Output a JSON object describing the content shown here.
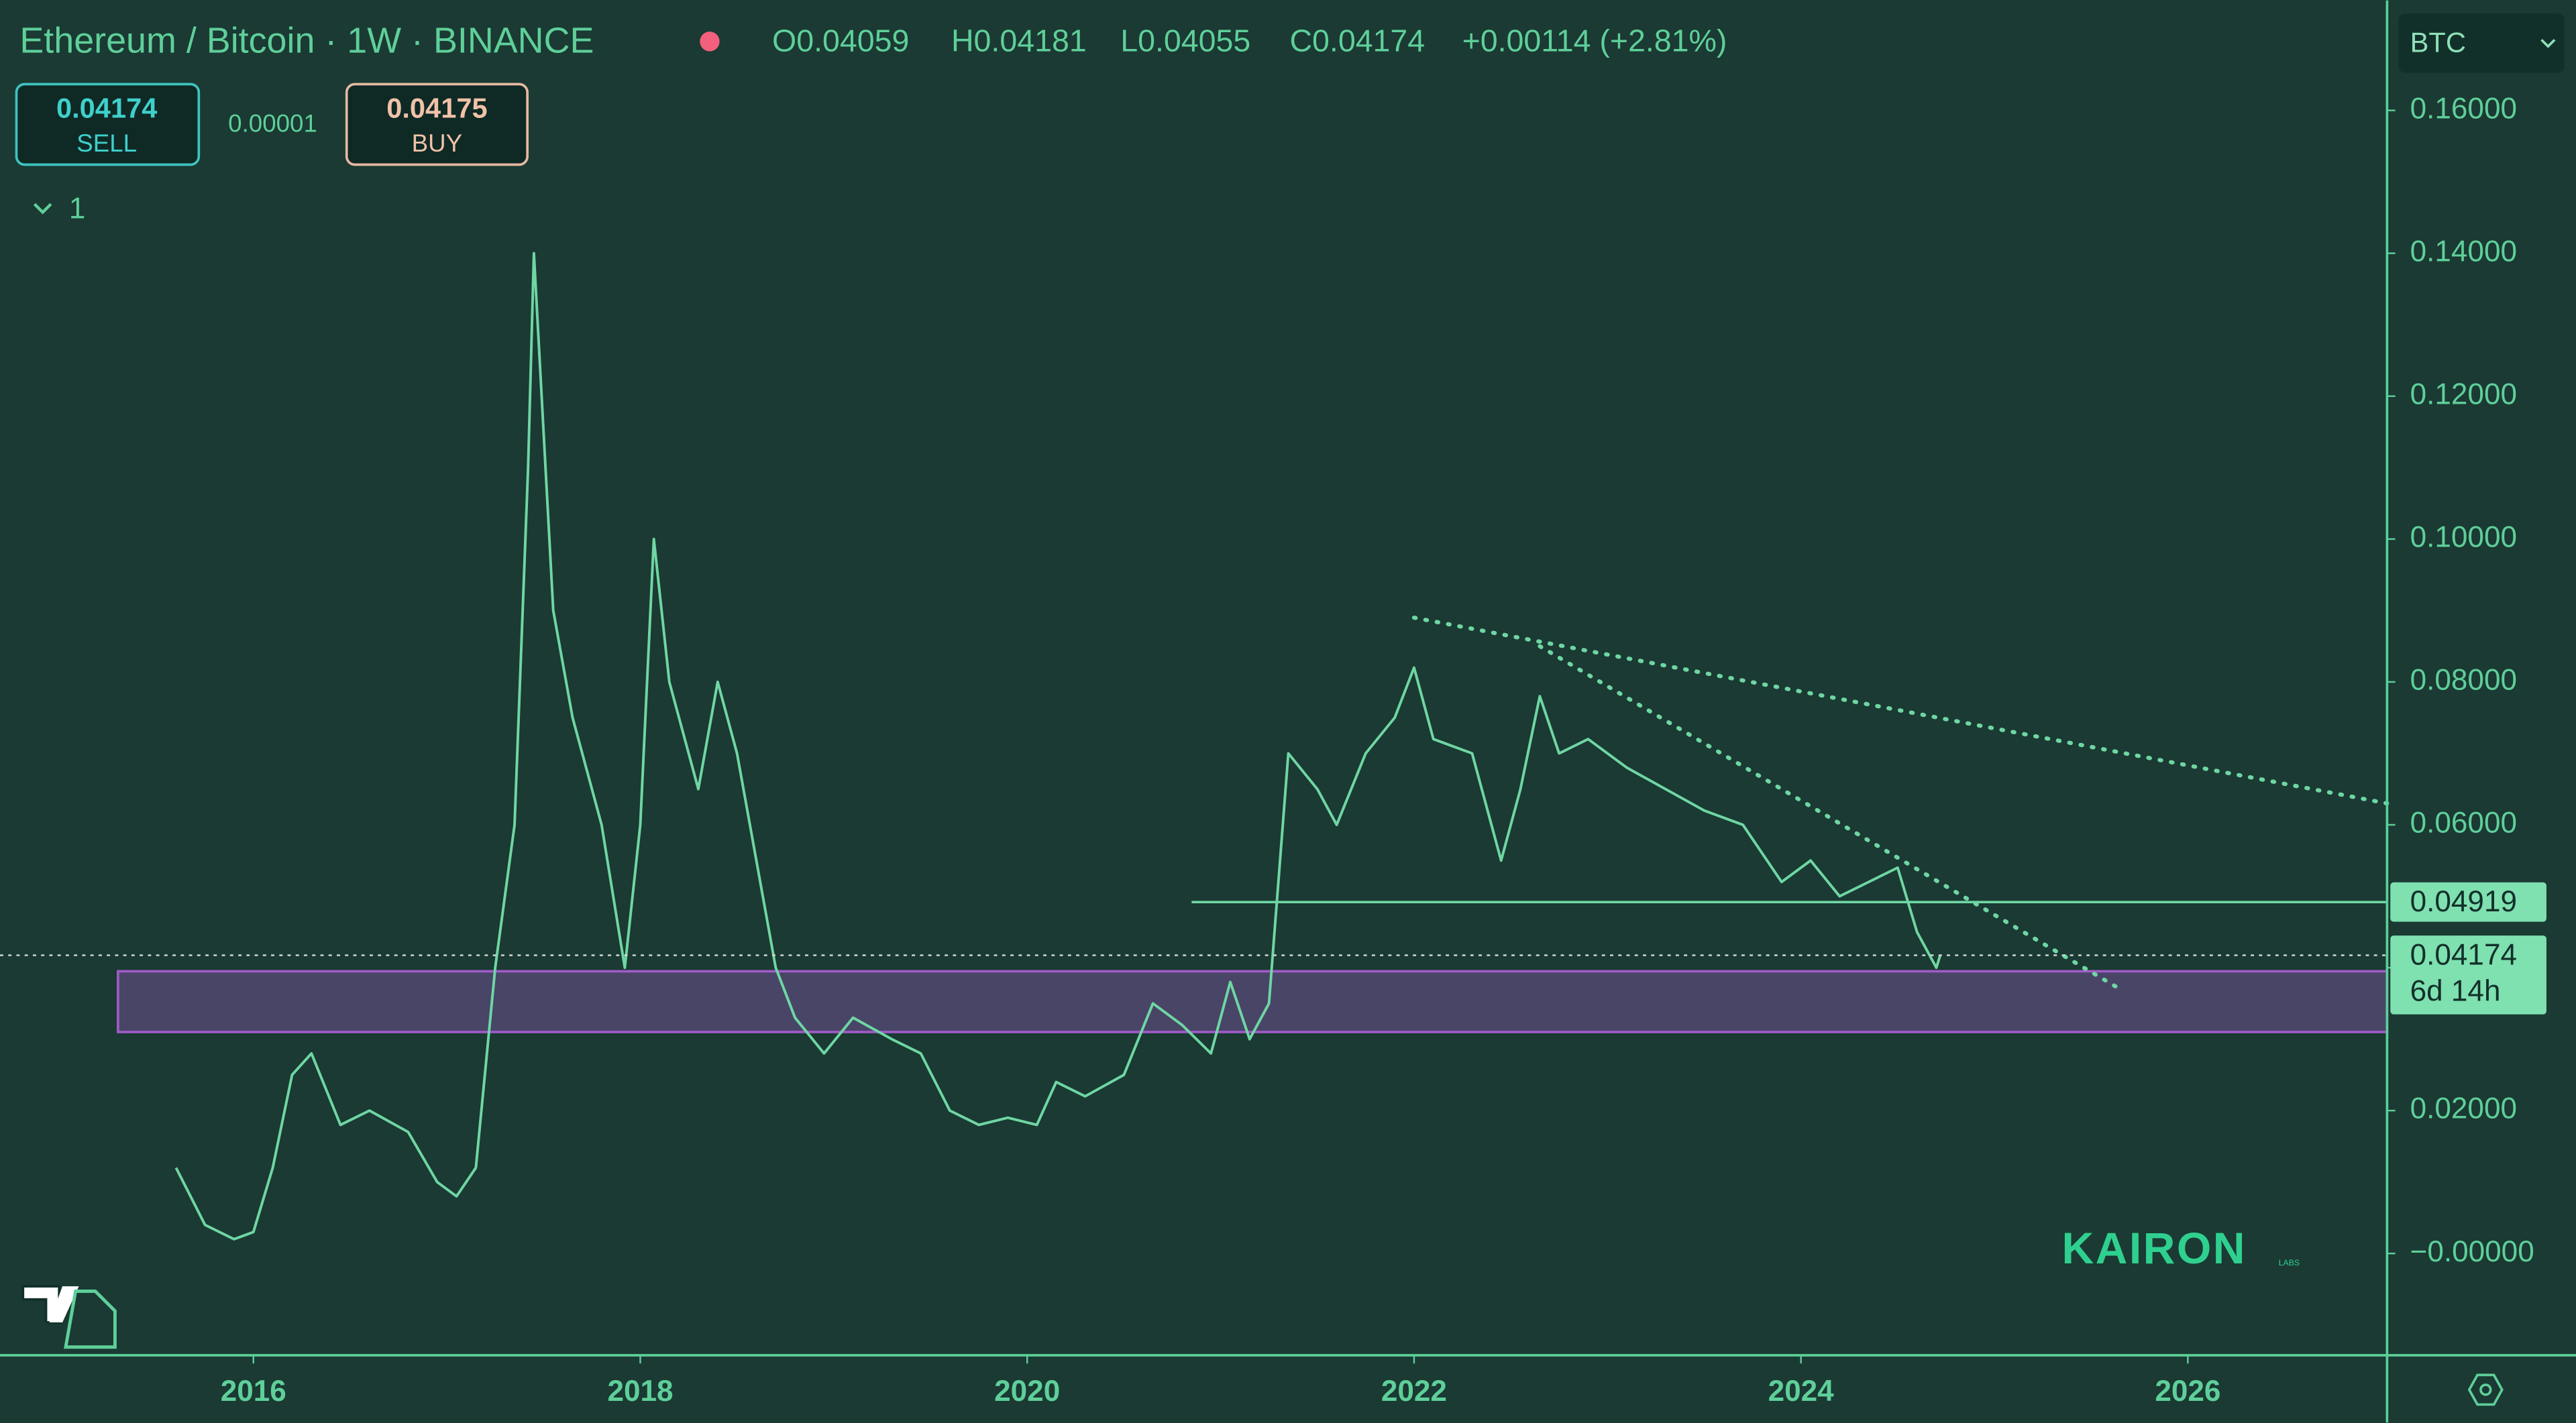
{
  "header": {
    "symbol": "Ethereum / Bitcoin · 1W · BINANCE",
    "open": "O0.04059",
    "high": "H0.04181",
    "low": "L0.04055",
    "close": "C0.04174",
    "change": "+0.00114 (+2.81%)",
    "currency": "BTC"
  },
  "trade_panel": {
    "sell_price": "0.04174",
    "sell": "SELL",
    "spread": "0.00001",
    "buy_price": "0.04175",
    "buy": "BUY"
  },
  "indicator_count": "1",
  "watermark": {
    "brand": "KAIRON",
    "sub": "LABS"
  },
  "chart_data": {
    "type": "line",
    "series": [
      {
        "name": "ETH/BTC",
        "color": "#6fd6a3",
        "x": [
          2015.6,
          2015.75,
          2015.9,
          2016.0,
          2016.1,
          2016.2,
          2016.3,
          2016.45,
          2016.6,
          2016.8,
          2016.95,
          2017.05,
          2017.15,
          2017.25,
          2017.35,
          2017.42,
          2017.45,
          2017.55,
          2017.65,
          2017.8,
          2017.92,
          2018.0,
          2018.07,
          2018.15,
          2018.3,
          2018.4,
          2018.5,
          2018.6,
          2018.7,
          2018.8,
          2018.95,
          2019.1,
          2019.3,
          2019.45,
          2019.6,
          2019.75,
          2019.9,
          2020.05,
          2020.15,
          2020.3,
          2020.5,
          2020.65,
          2020.8,
          2020.95,
          2021.05,
          2021.15,
          2021.25,
          2021.35,
          2021.5,
          2021.6,
          2021.75,
          2021.9,
          2022.0,
          2022.1,
          2022.3,
          2022.45,
          2022.55,
          2022.65,
          2022.75,
          2022.9,
          2023.1,
          2023.3,
          2023.5,
          2023.7,
          2023.9,
          2024.05,
          2024.2,
          2024.35,
          2024.5,
          2024.6,
          2024.7,
          2024.72
        ],
        "values": [
          0.012,
          0.004,
          0.002,
          0.003,
          0.012,
          0.025,
          0.028,
          0.018,
          0.02,
          0.017,
          0.01,
          0.008,
          0.012,
          0.04,
          0.06,
          0.11,
          0.14,
          0.09,
          0.075,
          0.06,
          0.04,
          0.06,
          0.1,
          0.08,
          0.065,
          0.08,
          0.07,
          0.055,
          0.04,
          0.033,
          0.028,
          0.033,
          0.03,
          0.028,
          0.02,
          0.018,
          0.019,
          0.018,
          0.024,
          0.022,
          0.025,
          0.035,
          0.032,
          0.028,
          0.038,
          0.03,
          0.035,
          0.07,
          0.065,
          0.06,
          0.07,
          0.075,
          0.082,
          0.072,
          0.07,
          0.055,
          0.065,
          0.078,
          0.07,
          0.072,
          0.068,
          0.065,
          0.062,
          0.06,
          0.052,
          0.055,
          0.05,
          0.052,
          0.054,
          0.045,
          0.04,
          0.04174
        ]
      }
    ],
    "xlim": [
      2014.69,
      2027.03
    ],
    "xticks": [
      2016,
      2018,
      2020,
      2022,
      2024,
      2026
    ],
    "ylim": [
      -0.01425,
      0.1754
    ],
    "yticks": [
      {
        "value": 0,
        "label": "−0.00000"
      },
      {
        "value": 0.02,
        "label": "0.02000"
      },
      {
        "value": 0.04,
        "label": "0.04000"
      },
      {
        "value": 0.06,
        "label": "0.06000"
      },
      {
        "value": 0.08,
        "label": "0.08000"
      },
      {
        "value": 0.1,
        "label": "0.10000"
      },
      {
        "value": 0.12,
        "label": "0.12000"
      },
      {
        "value": 0.14,
        "label": "0.14000"
      },
      {
        "value": 0.16,
        "label": "0.16000"
      }
    ],
    "zone": {
      "y": [
        0.031,
        0.0395
      ],
      "x": [
        2015.3,
        2027.03
      ],
      "color": "#a05bc8"
    },
    "trendlines": [
      {
        "x": [
          2022.0,
          2027.03
        ],
        "y": [
          0.089,
          0.063
        ]
      },
      {
        "x": [
          2022.65,
          2025.65
        ],
        "y": [
          0.085,
          0.037
        ]
      }
    ],
    "level": {
      "value": 0.04919,
      "label": "0.04919",
      "x_start": 2020.85
    },
    "last_price": {
      "value": 0.04174,
      "label": "0.04174",
      "countdown": "6d 14h"
    }
  }
}
